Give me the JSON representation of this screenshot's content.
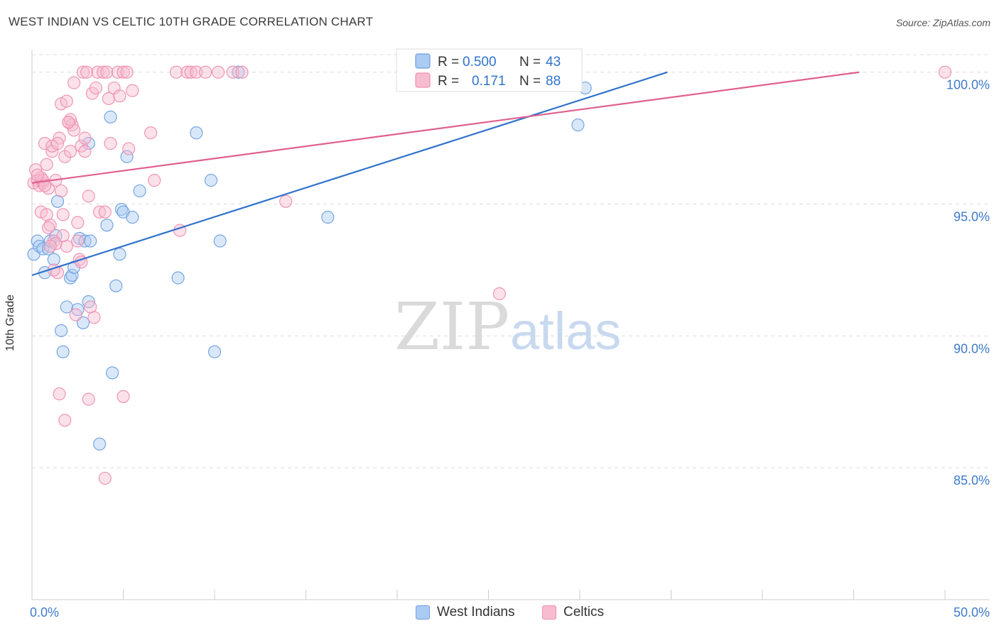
{
  "header": {
    "title": "WEST INDIAN VS CELTIC 10TH GRADE CORRELATION CHART",
    "source": "Source: ZipAtlas.com"
  },
  "watermark": {
    "zip": "ZIP",
    "atlas": "atlas"
  },
  "chart_data": {
    "type": "scatter",
    "title": "WEST INDIAN VS CELTIC 10TH GRADE CORRELATION CHART",
    "xlabel": "",
    "ylabel": "10th Grade",
    "xlim": [
      0,
      50
    ],
    "ylim": [
      80,
      100.8
    ],
    "x_tick_labels": [
      "0.0%",
      "50.0%"
    ],
    "y_ticks": [
      85,
      90,
      95,
      100
    ],
    "y_tick_labels": [
      "85.0%",
      "90.0%",
      "95.0%",
      "100.0%"
    ],
    "grid": true,
    "legend": {
      "position": "top-center",
      "entries": [
        {
          "r_label": "R =",
          "r_value": "0.500",
          "n_label": "N =",
          "n_value": "43"
        },
        {
          "r_label": "R =",
          "r_value": "0.171",
          "n_label": "N =",
          "n_value": "88"
        }
      ]
    },
    "series": [
      {
        "name": "West Indians",
        "color": "#6e9fe0",
        "fill": "#aacbf2",
        "line_color": "#2f72cc",
        "R": 0.5,
        "N": 43,
        "trend": {
          "x": [
            0.0,
            34.8
          ],
          "y": [
            92.3,
            100.0
          ]
        },
        "points": [
          [
            0.1,
            93.1
          ],
          [
            0.3,
            93.6
          ],
          [
            0.4,
            93.4
          ],
          [
            0.6,
            93.3
          ],
          [
            0.7,
            92.4
          ],
          [
            0.9,
            93.3
          ],
          [
            1.0,
            93.6
          ],
          [
            1.2,
            92.9
          ],
          [
            1.3,
            93.8
          ],
          [
            1.4,
            95.1
          ],
          [
            1.6,
            90.2
          ],
          [
            1.7,
            89.4
          ],
          [
            1.9,
            91.1
          ],
          [
            2.1,
            92.2
          ],
          [
            2.2,
            92.3
          ],
          [
            2.3,
            92.6
          ],
          [
            2.5,
            91.0
          ],
          [
            2.6,
            93.7
          ],
          [
            2.8,
            90.5
          ],
          [
            2.9,
            93.6
          ],
          [
            3.1,
            91.3
          ],
          [
            3.2,
            93.6
          ],
          [
            3.1,
            97.3
          ],
          [
            3.7,
            85.9
          ],
          [
            4.1,
            94.2
          ],
          [
            4.3,
            98.3
          ],
          [
            4.4,
            88.6
          ],
          [
            4.6,
            91.9
          ],
          [
            4.8,
            93.1
          ],
          [
            4.9,
            94.8
          ],
          [
            5.0,
            94.7
          ],
          [
            5.2,
            96.8
          ],
          [
            5.5,
            94.5
          ],
          [
            5.9,
            95.5
          ],
          [
            8.0,
            92.2
          ],
          [
            9.0,
            97.7
          ],
          [
            9.8,
            95.9
          ],
          [
            10.0,
            89.4
          ],
          [
            10.3,
            93.6
          ],
          [
            11.3,
            100.0
          ],
          [
            16.2,
            94.5
          ],
          [
            29.9,
            98.0
          ],
          [
            30.3,
            99.4
          ]
        ]
      },
      {
        "name": "Celtics",
        "color": "#ee8fb0",
        "fill": "#f7bcd0",
        "line_color": "#e0608f",
        "R": 0.171,
        "N": 88,
        "trend": {
          "x": [
            0.0,
            45.3
          ],
          "y": [
            95.8,
            100.0
          ]
        },
        "points": [
          [
            0.1,
            95.8
          ],
          [
            0.2,
            96.3
          ],
          [
            0.3,
            95.9
          ],
          [
            0.4,
            95.7
          ],
          [
            0.5,
            94.7
          ],
          [
            0.6,
            95.8
          ],
          [
            0.7,
            97.3
          ],
          [
            0.8,
            96.5
          ],
          [
            0.9,
            95.6
          ],
          [
            1.0,
            94.2
          ],
          [
            1.1,
            97.0
          ],
          [
            1.2,
            93.6
          ],
          [
            1.3,
            95.9
          ],
          [
            1.4,
            92.4
          ],
          [
            1.5,
            97.5
          ],
          [
            1.6,
            98.8
          ],
          [
            1.7,
            94.6
          ],
          [
            1.8,
            96.8
          ],
          [
            1.9,
            93.4
          ],
          [
            2.0,
            98.1
          ],
          [
            2.1,
            97.0
          ],
          [
            2.2,
            98.0
          ],
          [
            2.3,
            99.6
          ],
          [
            2.4,
            90.8
          ],
          [
            2.5,
            94.3
          ],
          [
            2.6,
            92.9
          ],
          [
            2.7,
            97.2
          ],
          [
            2.8,
            100.0
          ],
          [
            2.9,
            97.5
          ],
          [
            3.0,
            100.0
          ],
          [
            3.1,
            95.3
          ],
          [
            3.2,
            91.1
          ],
          [
            3.3,
            99.2
          ],
          [
            3.4,
            90.7
          ],
          [
            3.5,
            99.4
          ],
          [
            3.6,
            100.0
          ],
          [
            3.7,
            94.7
          ],
          [
            3.9,
            100.0
          ],
          [
            4.0,
            94.7
          ],
          [
            4.1,
            100.0
          ],
          [
            4.2,
            99.0
          ],
          [
            4.3,
            97.3
          ],
          [
            4.5,
            99.4
          ],
          [
            4.7,
            100.0
          ],
          [
            4.8,
            99.1
          ],
          [
            5.0,
            100.0
          ],
          [
            5.2,
            100.0
          ],
          [
            5.3,
            97.1
          ],
          [
            5.5,
            99.3
          ],
          [
            5.0,
            87.7
          ],
          [
            4.0,
            84.6
          ],
          [
            3.1,
            87.6
          ],
          [
            1.8,
            86.8
          ],
          [
            1.5,
            87.8
          ],
          [
            6.5,
            97.7
          ],
          [
            6.7,
            95.9
          ],
          [
            7.9,
            100.0
          ],
          [
            8.1,
            94.0
          ],
          [
            8.5,
            100.0
          ],
          [
            8.7,
            100.0
          ],
          [
            9.0,
            100.0
          ],
          [
            9.5,
            100.0
          ],
          [
            10.2,
            100.0
          ],
          [
            11.0,
            100.0
          ],
          [
            11.5,
            100.0
          ],
          [
            13.9,
            95.1
          ],
          [
            25.6,
            91.6
          ],
          [
            50.0,
            100.0
          ],
          [
            0.5,
            96.0
          ],
          [
            0.6,
            95.9
          ],
          [
            0.8,
            94.6
          ],
          [
            0.9,
            94.1
          ],
          [
            1.1,
            97.2
          ],
          [
            1.3,
            93.5
          ],
          [
            1.6,
            95.5
          ],
          [
            1.9,
            98.9
          ],
          [
            2.1,
            98.2
          ],
          [
            2.3,
            97.8
          ],
          [
            2.5,
            93.6
          ],
          [
            2.7,
            92.8
          ],
          [
            2.9,
            97.0
          ],
          [
            0.3,
            96.1
          ],
          [
            0.7,
            95.7
          ],
          [
            1.0,
            93.4
          ],
          [
            1.2,
            92.5
          ],
          [
            1.4,
            97.3
          ],
          [
            1.7,
            93.8
          ],
          [
            2.0,
            98.1
          ]
        ]
      }
    ]
  },
  "bottom_legend": [
    "West Indians",
    "Celtics"
  ]
}
